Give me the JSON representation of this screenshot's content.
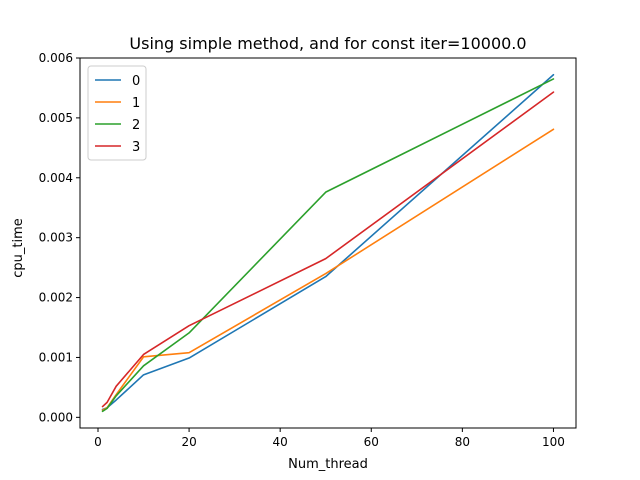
{
  "chart_data": {
    "type": "line",
    "title": "Using simple method, and for const iter=10000.0",
    "xlabel": "Num_thread",
    "ylabel": "cpu_time",
    "xlim": [
      -3.95,
      104.95
    ],
    "ylim": [
      -0.000178,
      0.006
    ],
    "xticks": [
      0,
      20,
      40,
      60,
      80,
      100
    ],
    "xtick_labels": [
      "0",
      "20",
      "40",
      "60",
      "80",
      "100"
    ],
    "yticks": [
      0.0,
      0.001,
      0.002,
      0.003,
      0.004,
      0.005,
      0.006
    ],
    "ytick_labels": [
      "0.000",
      "0.001",
      "0.002",
      "0.003",
      "0.004",
      "0.005",
      "0.006"
    ],
    "grid": false,
    "legend_position": "top-left",
    "x": [
      1,
      2,
      4,
      10,
      20,
      50,
      100
    ],
    "series": [
      {
        "name": "0",
        "color": "#1f77b4",
        "values": [
          0.00013,
          0.00016,
          0.00029,
          0.00071,
          0.00099,
          0.00235,
          0.00572
        ]
      },
      {
        "name": "1",
        "color": "#ff7f0e",
        "values": [
          0.00012,
          0.00016,
          0.00038,
          0.00101,
          0.00108,
          0.0024,
          0.00481
        ]
      },
      {
        "name": "2",
        "color": "#2ca02c",
        "values": [
          0.0001,
          0.00015,
          0.00036,
          0.00086,
          0.00141,
          0.00376,
          0.00565
        ]
      },
      {
        "name": "3",
        "color": "#d62728",
        "values": [
          0.00018,
          0.00025,
          0.00052,
          0.00105,
          0.00153,
          0.00265,
          0.00543
        ]
      }
    ]
  }
}
